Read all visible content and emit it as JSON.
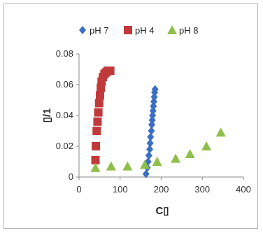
{
  "chart_data": {
    "type": "scatter",
    "xlabel": "C▯",
    "ylabel": "▯/1",
    "xlim": [
      0,
      400
    ],
    "ylim": [
      0,
      0.08
    ],
    "x_ticks": [
      0,
      100,
      200,
      300,
      400
    ],
    "y_ticks": [
      0,
      0.02,
      0.04,
      0.06,
      0.08
    ],
    "y_tick_labels": [
      "0",
      "0.02",
      "0.04",
      "0.06",
      "0.08"
    ],
    "grid": false,
    "legend": "top",
    "series": [
      {
        "name": "pH 7",
        "marker": "diamond",
        "color": "#3b6fc4",
        "points": [
          [
            163,
            0.002
          ],
          [
            166,
            0.006
          ],
          [
            168,
            0.01
          ],
          [
            170,
            0.014
          ],
          [
            172,
            0.018
          ],
          [
            173,
            0.022
          ],
          [
            174,
            0.026
          ],
          [
            176,
            0.03
          ],
          [
            177,
            0.034
          ],
          [
            178,
            0.037
          ],
          [
            179,
            0.04
          ],
          [
            180,
            0.043
          ],
          [
            181,
            0.046
          ],
          [
            182,
            0.049
          ],
          [
            183,
            0.052
          ],
          [
            184,
            0.055
          ],
          [
            185,
            0.057
          ]
        ]
      },
      {
        "name": "pH 4",
        "marker": "square",
        "color": "#c0393b",
        "points": [
          [
            40,
            0.011
          ],
          [
            41,
            0.02
          ],
          [
            43,
            0.03
          ],
          [
            45,
            0.036
          ],
          [
            47,
            0.042
          ],
          [
            49,
            0.048
          ],
          [
            51,
            0.053
          ],
          [
            53,
            0.058
          ],
          [
            55,
            0.062
          ],
          [
            58,
            0.065
          ],
          [
            62,
            0.067
          ],
          [
            66,
            0.068
          ],
          [
            70,
            0.069
          ],
          [
            76,
            0.069
          ]
        ]
      },
      {
        "name": "pH 8",
        "marker": "triangle",
        "color": "#8fbf4a",
        "points": [
          [
            40,
            0.006
          ],
          [
            78,
            0.007
          ],
          [
            118,
            0.007
          ],
          [
            160,
            0.008
          ],
          [
            190,
            0.01
          ],
          [
            235,
            0.012
          ],
          [
            270,
            0.015
          ],
          [
            310,
            0.02
          ],
          [
            345,
            0.029
          ]
        ]
      }
    ]
  }
}
